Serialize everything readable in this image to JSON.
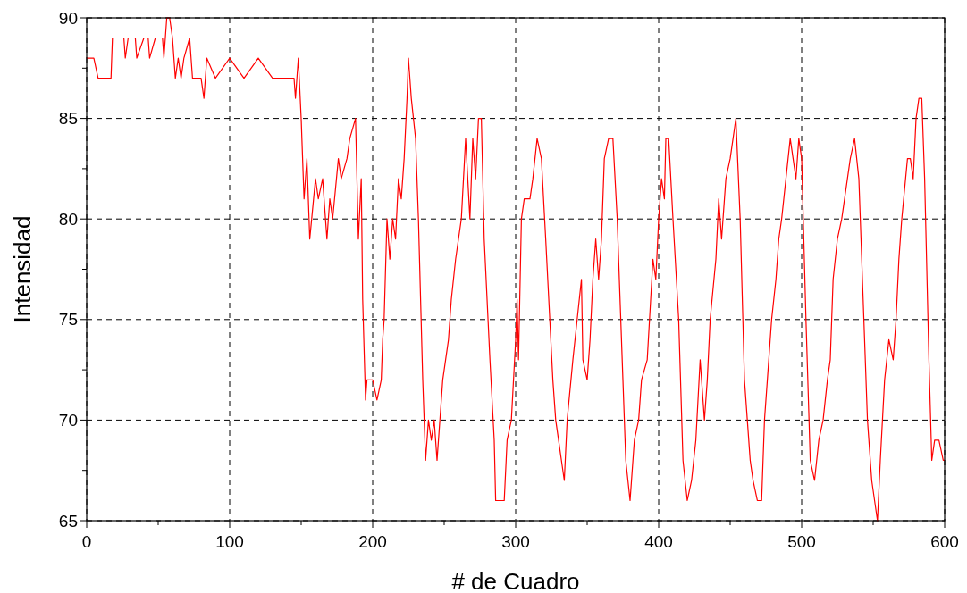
{
  "chart_data": {
    "type": "line",
    "xlabel": "# de Cuadro",
    "ylabel": "Intensidad",
    "xlim": [
      0,
      600
    ],
    "ylim": [
      65,
      90
    ],
    "xticks": [
      0,
      {
        "value": 50,
        "label": null
      },
      100,
      {
        "value": 150,
        "label": null
      },
      200,
      {
        "value": 250,
        "label": null
      },
      300,
      {
        "value": 350,
        "label": null
      },
      400,
      {
        "value": 450,
        "label": null
      },
      500,
      {
        "value": 550,
        "label": null
      },
      600
    ],
    "yticks": [
      65,
      {
        "value": 67.5,
        "label": null
      },
      70,
      {
        "value": 72.5,
        "label": null
      },
      75,
      {
        "value": 77.5,
        "label": null
      },
      80,
      {
        "value": 82.5,
        "label": null
      },
      85,
      {
        "value": 87.5,
        "label": null
      },
      90
    ],
    "grid": true,
    "line_style": "solid",
    "series": [
      {
        "color": "#ff0000",
        "x": [
          0,
          5,
          8,
          17,
          18,
          26,
          27,
          29,
          34,
          35,
          40,
          43,
          44,
          48,
          53,
          54,
          56,
          58,
          60,
          62,
          64,
          66,
          68,
          72,
          74,
          80,
          82,
          84,
          90,
          100,
          110,
          120,
          130,
          145,
          146,
          148,
          150,
          152,
          154,
          156,
          160,
          162,
          165,
          168,
          170,
          172,
          176,
          178,
          182,
          184,
          188,
          190,
          192,
          193,
          195,
          196,
          200,
          203,
          206,
          207,
          208,
          210,
          212,
          214,
          216,
          218,
          220,
          222,
          224,
          225,
          227,
          230,
          232,
          235,
          237,
          239,
          241,
          243,
          245,
          247,
          249,
          251,
          253,
          255,
          258,
          262,
          265,
          268,
          270,
          272,
          274,
          276,
          278,
          282,
          285,
          286,
          292,
          294,
          297,
          300,
          301,
          302,
          304,
          306,
          310,
          312,
          315,
          318,
          321,
          326,
          328,
          330,
          334,
          336,
          340,
          343,
          346,
          347,
          350,
          352,
          354,
          356,
          358,
          360,
          362,
          365,
          368,
          371,
          375,
          377,
          380,
          383,
          386,
          388,
          392,
          396,
          398,
          400,
          402,
          404,
          405,
          407,
          410,
          414,
          417,
          420,
          423,
          426,
          429,
          432,
          434,
          436,
          440,
          442,
          444,
          447,
          450,
          452,
          454,
          457,
          460,
          464,
          466,
          469,
          472,
          474,
          477,
          479,
          482,
          484,
          486,
          489,
          492,
          494,
          496,
          498,
          500,
          503,
          506,
          509,
          512,
          515,
          518,
          520,
          522,
          525,
          528,
          532,
          534,
          537,
          540,
          543,
          546,
          549,
          551,
          553,
          555,
          558,
          561,
          564,
          566,
          568,
          570,
          574,
          576,
          578,
          580,
          582,
          584,
          586,
          589,
          591,
          593,
          596,
          599,
          600
        ],
        "values": [
          88,
          88,
          87,
          87,
          89,
          89,
          88,
          89,
          89,
          88,
          89,
          89,
          88,
          89,
          89,
          88,
          90,
          90,
          89,
          87,
          88,
          87,
          88,
          89,
          87,
          87,
          86,
          88,
          87,
          88,
          87,
          88,
          87,
          87,
          86,
          88,
          85,
          81,
          83,
          79,
          82,
          81,
          82,
          79,
          81,
          80,
          83,
          82,
          83,
          84,
          85,
          79,
          82,
          76,
          71,
          72,
          72,
          71,
          72,
          74,
          75,
          80,
          78,
          80,
          79,
          82,
          81,
          83,
          86,
          88,
          86,
          84,
          80,
          72,
          68,
          70,
          69,
          70,
          68,
          70,
          72,
          73,
          74,
          76,
          78,
          80,
          84,
          80,
          84,
          82,
          85,
          85,
          79,
          73,
          69,
          66,
          66,
          69,
          70,
          74,
          76,
          73,
          80,
          81,
          81,
          82,
          84,
          83,
          79,
          72,
          70,
          69,
          67,
          70,
          73,
          75,
          77,
          73,
          72,
          74,
          77,
          79,
          77,
          79,
          83,
          84,
          84,
          80,
          72,
          68,
          66,
          69,
          70,
          72,
          73,
          78,
          77,
          80,
          82,
          81,
          84,
          84,
          80,
          75,
          68,
          66,
          67,
          69,
          73,
          70,
          72,
          75,
          78,
          81,
          79,
          82,
          83,
          84,
          85,
          80,
          72,
          68,
          67,
          66,
          66,
          70,
          73,
          75,
          77,
          79,
          80,
          82,
          84,
          83,
          82,
          84,
          83,
          75,
          68,
          67,
          69,
          70,
          72,
          73,
          77,
          79,
          80,
          82,
          83,
          84,
          82,
          76,
          70,
          67,
          66,
          65,
          68,
          72,
          74,
          73,
          75,
          78,
          80,
          83,
          83,
          82,
          85,
          86,
          86,
          82,
          73,
          68,
          69,
          69,
          68,
          68
        ]
      }
    ]
  }
}
